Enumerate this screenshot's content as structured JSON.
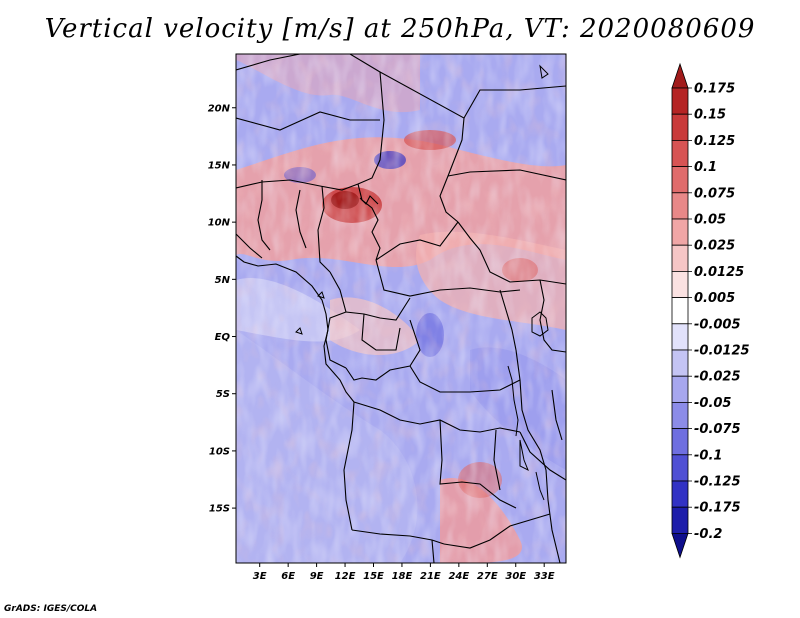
{
  "title": "Vertical velocity [m/s] at 250hPa, VT: 2020080609",
  "credit": "GrADS: IGES/COLA",
  "map": {
    "lat_labels": [
      "20N",
      "15N",
      "10N",
      "5N",
      "EQ",
      "5S",
      "10S",
      "15S"
    ],
    "lat_values": [
      20,
      15,
      10,
      5,
      0,
      -5,
      -10,
      -15
    ],
    "lon_labels": [
      "3E",
      "6E",
      "9E",
      "12E",
      "15E",
      "18E",
      "21E",
      "24E",
      "27E",
      "30E",
      "33E"
    ],
    "lon_values": [
      3,
      6,
      9,
      12,
      15,
      18,
      21,
      24,
      27,
      30,
      33
    ],
    "lon_range": [
      0.5,
      35.3
    ],
    "lat_range": [
      -19.8,
      24.7
    ]
  },
  "colorbar": {
    "labels": [
      "0.175",
      "0.15",
      "0.125",
      "0.1",
      "0.075",
      "0.05",
      "0.025",
      "0.0125",
      "0.005",
      "-0.005",
      "-0.0125",
      "-0.025",
      "-0.05",
      "-0.075",
      "-0.1",
      "-0.125",
      "-0.175",
      "-0.2"
    ],
    "colors": [
      "#a11b1b",
      "#b52424",
      "#c93a3a",
      "#d75454",
      "#e06c6c",
      "#e88888",
      "#f0a6a6",
      "#f6c6c6",
      "#fbe2e2",
      "#ffffff",
      "#e2e2fb",
      "#c4c4f4",
      "#a7a7ee",
      "#8c8ce8",
      "#6f6fe0",
      "#5050d4",
      "#3232c4",
      "#1d1daa",
      "#0e0e8c"
    ]
  }
}
